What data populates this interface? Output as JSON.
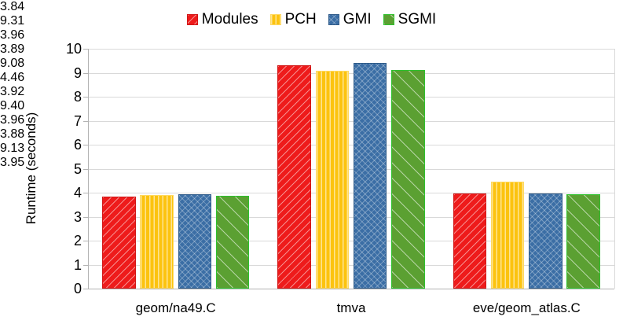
{
  "chart_data": {
    "type": "bar",
    "title": "",
    "ylabel": "Runtime (seconds)",
    "xlabel": "",
    "categories": [
      "geom/na49.C",
      "tmva",
      "eve/geom_atlas.C"
    ],
    "series": [
      {
        "name": "Modules",
        "color": "#ee1b1b",
        "border": "#d01616",
        "hatch": "diag-up",
        "values": [
          3.84,
          9.31,
          3.96
        ]
      },
      {
        "name": "PCH",
        "color": "#fcc30f",
        "border": "#ffd95e",
        "hatch": "vertical",
        "values": [
          3.89,
          9.08,
          4.46
        ]
      },
      {
        "name": "GMI",
        "color": "#3b6ea5",
        "border": "#2e5a88",
        "hatch": "cross",
        "values": [
          3.92,
          9.4,
          3.96
        ]
      },
      {
        "name": "SGMI",
        "color": "#5ba032",
        "border": "#2ec22e",
        "hatch": "diag-down",
        "values": [
          3.88,
          9.13,
          3.95
        ]
      }
    ],
    "value_labels": [
      [
        "3.84",
        "9.31",
        "3.96"
      ],
      [
        "3.89",
        "9.08",
        "4.46"
      ],
      [
        "3.92",
        "9.40",
        "3.96"
      ],
      [
        "3.88",
        "9.13",
        "3.95"
      ]
    ],
    "ylim": [
      0,
      10
    ],
    "ytick_step": 1,
    "ytick_labels": [
      "0",
      "1",
      "2",
      "3",
      "4",
      "5",
      "6",
      "7",
      "8",
      "9",
      "10"
    ],
    "grid": true,
    "legend_position": "top",
    "colors": {
      "gridline": "#d9d9d9",
      "axis": "#b3b3b3",
      "text": "#000000",
      "background": "#ffffff"
    }
  }
}
